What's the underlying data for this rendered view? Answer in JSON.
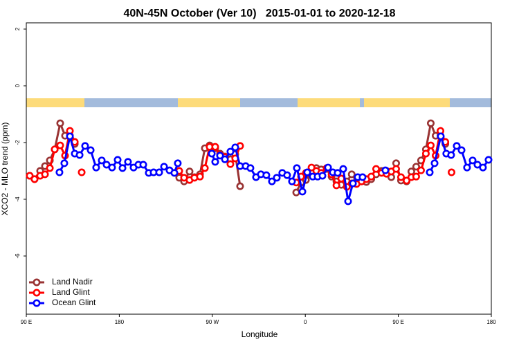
{
  "chart_data": {
    "type": "line",
    "title": "40N-45N October (Ver 10)   2015-01-01 to 2020-12-18",
    "x_label": "Longitude",
    "y_label": "XCO2 - MLO trend (ppm)",
    "xlim": [
      90,
      540
    ],
    "ylim": [
      -8.05,
      2.22
    ],
    "xticks": [
      {
        "value": 90,
        "label": "90 E"
      },
      {
        "value": 180,
        "label": "180"
      },
      {
        "value": 270,
        "label": "90 W"
      },
      {
        "value": 360,
        "label": "0"
      },
      {
        "value": 450,
        "label": "90 E"
      },
      {
        "value": 540,
        "label": "180"
      }
    ],
    "yticks": [
      2,
      0,
      -2,
      -4,
      -6
    ],
    "legend": "bottomleft",
    "series": [
      {
        "name": "Land Nadir",
        "color": "#993333",
        "x": [
          93.3,
          98.0,
          103.4,
          108.1,
          112.8,
          117.5,
          122.8,
          127.5,
          132.2,
          136.9,
          200,
          238.0,
          242.7,
          248.0,
          252.7,
          258.1,
          262.8,
          267.4,
          272.8,
          277.5,
          282.2,
          287.5,
          292.2,
          296.9,
          320,
          351.2,
          355.9,
          360.6,
          366.0,
          370.7,
          375.4,
          380.7,
          385.4,
          390.1,
          394.8,
          400.2,
          404.9,
          409.6,
          414.4,
          419.1,
          423.8,
          428.5,
          433.8,
          438.5,
          443.2,
          447.9,
          452.6,
          458.0,
          462.6,
          467.3,
          472.0,
          476.7,
          481.4,
          486.1,
          490.8,
          495.5
        ],
        "values": [
          -3.17,
          -3.29,
          -3.0,
          -2.83,
          -2.63,
          -2.24,
          -1.32,
          -1.76,
          -1.76,
          -2.05,
          null,
          -3.24,
          -3.37,
          -3.02,
          -3.22,
          -3.12,
          -2.2,
          -2.1,
          -2.2,
          -2.39,
          -2.49,
          -2.59,
          -2.41,
          -3.54,
          null,
          -3.76,
          -3.41,
          -3.32,
          -3.05,
          -2.9,
          -2.95,
          -2.93,
          -3.2,
          -3.37,
          -3.49,
          -3.37,
          -3.12,
          -3.37,
          -3.37,
          -3.39,
          -3.29,
          -3.12,
          -3.0,
          -3.0,
          -3.22,
          -2.73,
          -3.34,
          -3.37,
          -3.02,
          -2.85,
          -2.63,
          -2.24,
          -1.32,
          -1.76,
          -1.76,
          -2.05
        ]
      },
      {
        "name": "Land Glint",
        "color": "#ff0000",
        "x": [
          93.3,
          98.0,
          103.4,
          108.1,
          112.8,
          117.5,
          122.8,
          127.5,
          132.2,
          136.9,
          140,
          143.6,
          200,
          238.0,
          242.7,
          248.0,
          252.7,
          258.1,
          262.8,
          267.4,
          272.8,
          277.5,
          282.2,
          287.5,
          292.2,
          296.9,
          320,
          351.2,
          355.9,
          360.6,
          366.0,
          370.7,
          375.4,
          380.7,
          385.4,
          390.1,
          394.8,
          400.2,
          404.9,
          409.6,
          414.4,
          419.1,
          423.8,
          428.5,
          433.8,
          438.5,
          443.2,
          447.9,
          452.6,
          458.0,
          462.6,
          467.3,
          472.0,
          476.7,
          481.4,
          486.1,
          490.8,
          495.5,
          498,
          501.5
        ],
        "values": [
          -3.17,
          -3.29,
          -3.17,
          -3.12,
          -2.9,
          -2.24,
          -2.1,
          -2.46,
          -1.59,
          -1.98,
          null,
          -3.05,
          null,
          -3.0,
          -3.24,
          -3.32,
          -3.24,
          -3.2,
          -2.9,
          -2.15,
          -2.15,
          -2.44,
          -2.51,
          -2.76,
          -2.56,
          -2.12,
          null,
          -3.41,
          -3.2,
          -3.07,
          -2.88,
          -3.0,
          -3.07,
          -2.9,
          -3.12,
          -3.51,
          -3.27,
          -3.56,
          -3.44,
          -3.46,
          -3.37,
          -3.29,
          -3.2,
          -2.93,
          -3.07,
          -3.1,
          -3.02,
          -2.93,
          -3.22,
          -3.34,
          -3.22,
          -3.2,
          -2.98,
          -2.39,
          -2.1,
          -2.46,
          -1.59,
          -1.98,
          null,
          -3.05
        ]
      },
      {
        "name": "Ocean Glint",
        "color": "#0000ff",
        "x": [
          122.1,
          126.8,
          132.2,
          136.9,
          141.6,
          146.9,
          152.3,
          157.6,
          163.0,
          167.7,
          173.0,
          178.4,
          183.1,
          188.4,
          193.8,
          198.5,
          203.2,
          208.5,
          213.2,
          218.6,
          223.3,
          228.6,
          233.3,
          236.6,
          250,
          269.5,
          272.8,
          277.5,
          282.2,
          287.5,
          292.2,
          296.9,
          302.3,
          306.9,
          312.3,
          317.0,
          322.3,
          327.7,
          332.4,
          337.7,
          342.4,
          347.1,
          351.8,
          357.2,
          361.9,
          367.2,
          371.9,
          376.6,
          382.0,
          386.6,
          391.3,
          396.7,
          401.4,
          406.1,
          410.7,
          415.4,
          425,
          437.5,
          460,
          480.4,
          485.1,
          491.1,
          496.4,
          501.1,
          506.5,
          511.2,
          516.5,
          521.9,
          526.6,
          531.9,
          537.3
        ],
        "values": [
          -3.05,
          -2.73,
          -1.78,
          -2.39,
          -2.44,
          -2.12,
          -2.27,
          -2.88,
          -2.63,
          -2.78,
          -2.88,
          -2.61,
          -2.9,
          -2.68,
          -2.88,
          -2.78,
          -2.78,
          -3.07,
          -3.05,
          -3.05,
          -2.85,
          -2.98,
          -3.07,
          -2.73,
          null,
          -2.39,
          -2.68,
          -2.46,
          -2.59,
          -2.32,
          -2.17,
          -2.83,
          -2.83,
          -2.9,
          -3.22,
          -3.12,
          -3.15,
          -3.37,
          -3.24,
          -3.07,
          -3.15,
          -3.37,
          -2.9,
          -3.73,
          -3.05,
          -3.2,
          -3.2,
          -3.17,
          -2.88,
          -3.05,
          -3.07,
          -2.93,
          -4.07,
          -3.44,
          -3.22,
          -3.22,
          null,
          -2.98,
          null,
          -3.05,
          -2.73,
          -1.78,
          -2.39,
          -2.44,
          -2.12,
          -2.27,
          -2.88,
          -2.63,
          -2.78,
          -2.88,
          -2.61
        ]
      }
    ]
  }
}
